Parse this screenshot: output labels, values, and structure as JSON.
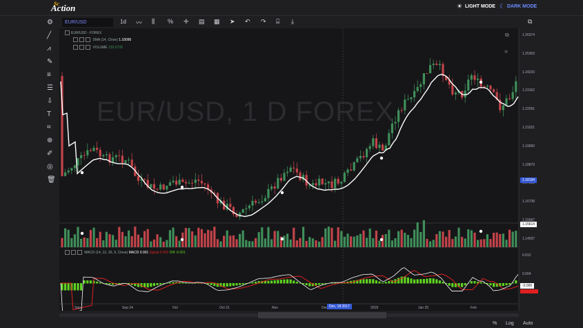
{
  "app": {
    "logo": "Action",
    "logo_prefix": "Sc"
  },
  "top": {
    "light_label": "LIGHT MODE",
    "dark_label": "DARK MODE"
  },
  "toolbar": {
    "symbol": "EUR/USD",
    "interval": "1d"
  },
  "legend": {
    "title": "EUR/USD - FOREX",
    "sma": "SMA (14, Close)",
    "sma_val": "1.18086",
    "volume": "VOLUME",
    "volume_val": "139,5709",
    "macd": "MACD (14, 12, 26, 9, Close)",
    "macd_val": "MACD 0.001",
    "sig": "Signal 0.002",
    "dif": "Diff -0.001"
  },
  "watermark": "EUR/USD, 1 D FOREX",
  "price_axis": [
    "1.26374",
    "1.25303",
    "1.24233",
    "1.23162",
    "1.22091",
    "1.21021",
    "1.19950",
    "1.18879",
    "1.17809",
    "1.16738",
    "1.15667",
    "1.14597"
  ],
  "price_badge": "1.18194",
  "volume_badge": "1.15614",
  "macd_axis": [
    "0.012",
    "0.004",
    "-0.004"
  ],
  "macd_badge": "-0.000",
  "x_axis": [
    "Sep",
    "Sep 24",
    "Oct",
    "Oct 31",
    "Nov",
    "Dec",
    "2018",
    "Jan 25",
    "Feb"
  ],
  "crosshair_date": "Dec, 18 2017",
  "footer": {
    "percent": "%",
    "log": "Log",
    "auto": "Auto"
  },
  "colors": {
    "up": "#3f8f5a",
    "down": "#c2444a",
    "sma": "#ffffff",
    "macd_line": "#ffffff",
    "signal": "#e02020",
    "hist": "#5fd321",
    "accent": "#3559d6"
  }
}
